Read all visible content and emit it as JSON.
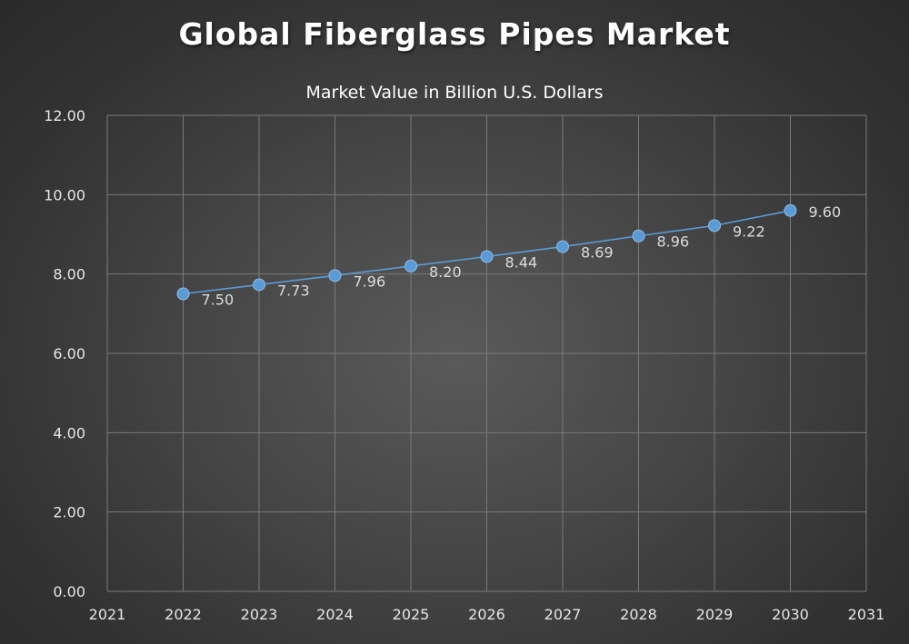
{
  "chart_data": {
    "type": "line",
    "title": "Global Fiberglass Pipes Market",
    "subtitle": "Market Value in Billion U.S. Dollars",
    "xlabel": "",
    "ylabel": "",
    "x": [
      2022,
      2023,
      2024,
      2025,
      2026,
      2027,
      2028,
      2029,
      2030
    ],
    "series": [
      {
        "values": [
          7.5,
          7.73,
          7.96,
          8.2,
          8.44,
          8.69,
          8.96,
          9.22,
          9.6
        ],
        "labels": [
          "7.50",
          "7.73",
          "7.96",
          "8.20",
          "8.44",
          "8.69",
          "8.96",
          "9.22",
          "9.60"
        ]
      }
    ],
    "xlim": [
      2021,
      2031
    ],
    "ylim": [
      0,
      12
    ],
    "x_ticks": [
      "2021",
      "2022",
      "2023",
      "2024",
      "2025",
      "2026",
      "2027",
      "2028",
      "2029",
      "2030",
      "2031"
    ],
    "y_ticks": [
      "0.00",
      "2.00",
      "4.00",
      "6.00",
      "8.00",
      "10.00",
      "12.00"
    ],
    "grid": true,
    "legend": "none",
    "colors": {
      "line": "#5b9bd5",
      "marker": "#5b9bd5",
      "grid": "#7a7a7a",
      "text": "#e6e6e6"
    }
  }
}
